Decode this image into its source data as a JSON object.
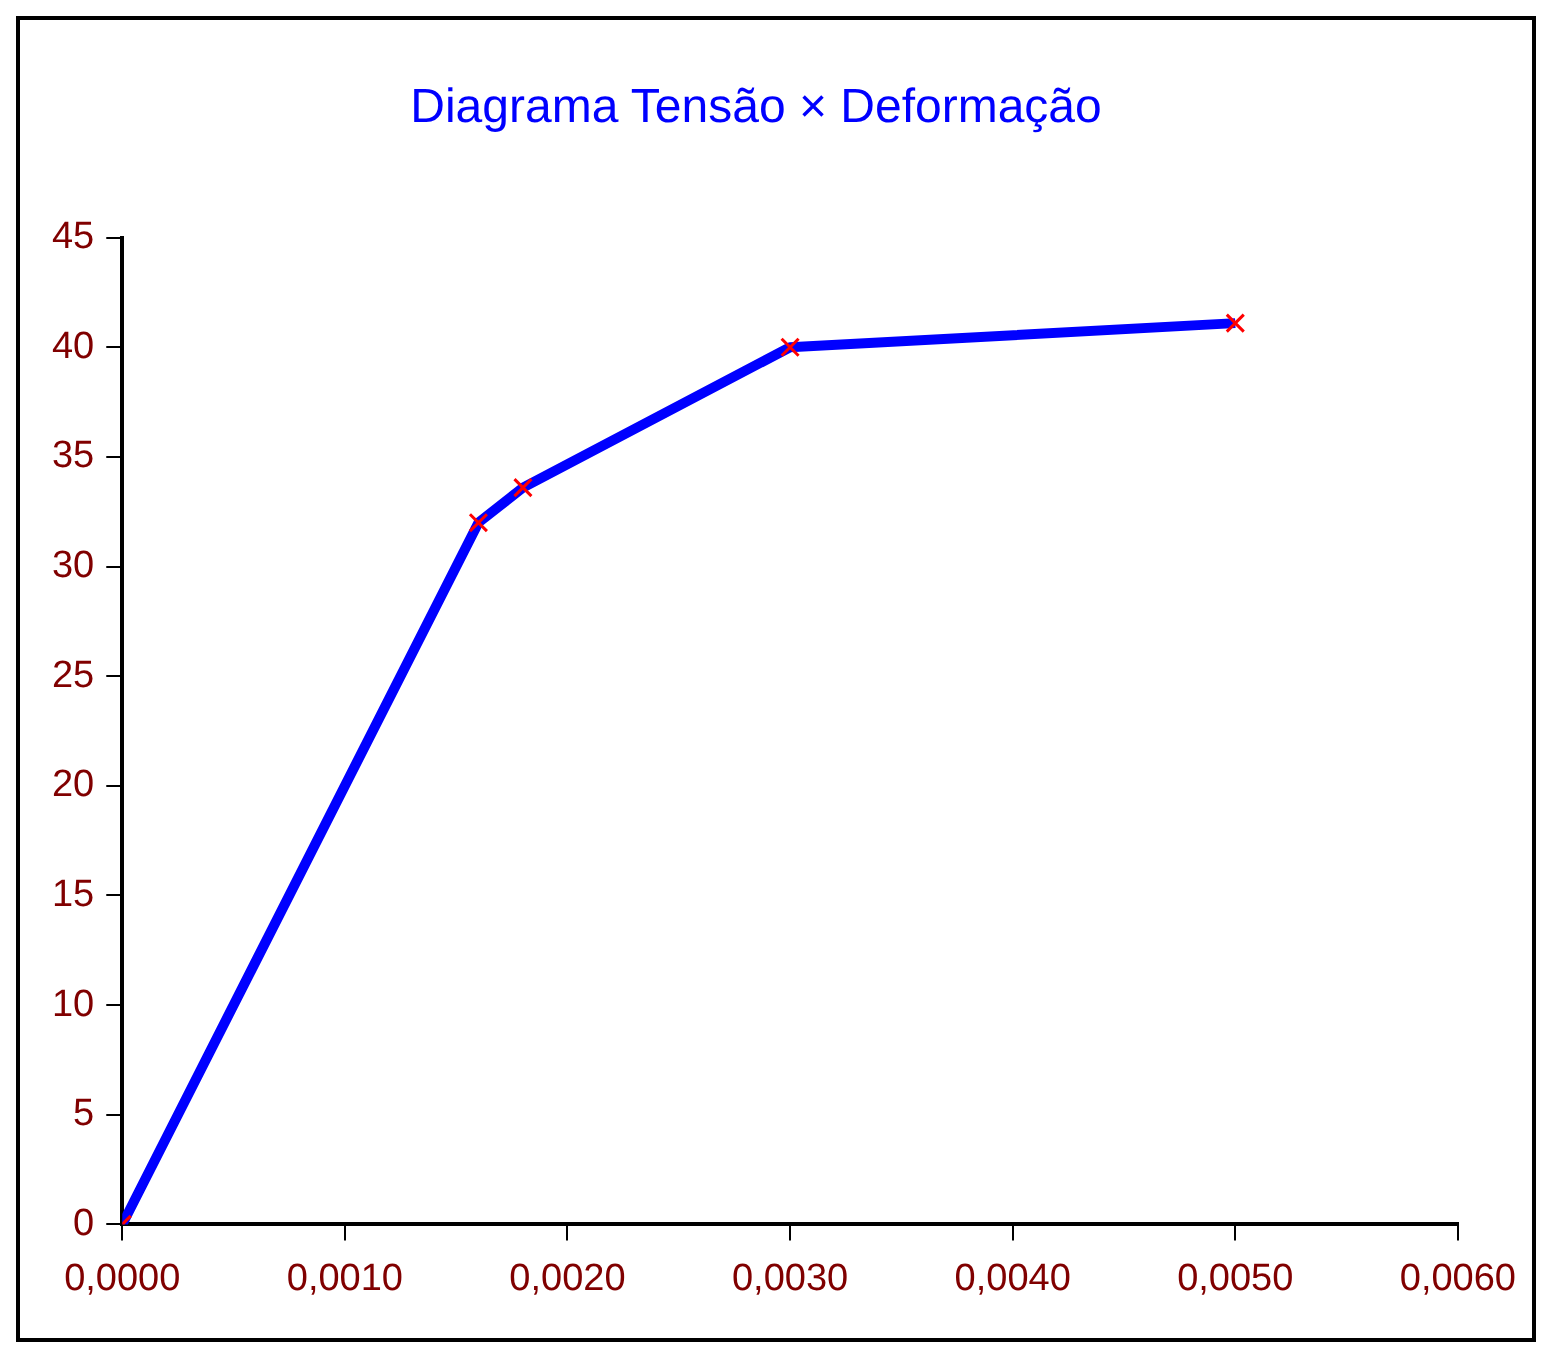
{
  "chart_data": {
    "type": "line",
    "title": "Diagrama Tensão × Deformação",
    "x": [
      0,
      0.0016,
      0.0018,
      0.003,
      0.005
    ],
    "series": [
      {
        "color": "#0000ff",
        "values": [
          0,
          32,
          33.6,
          40,
          41.1
        ]
      }
    ],
    "marker": "cross",
    "line_style": "solid",
    "grid": false,
    "legend": false,
    "xlim": [
      0,
      0.006
    ],
    "ylim": [
      0,
      45
    ],
    "xticks": [
      {
        "value": 0,
        "label": "0,0000"
      },
      {
        "value": 0.001,
        "label": "0,0010"
      },
      {
        "value": 0.002,
        "label": "0,0020"
      },
      {
        "value": 0.003,
        "label": "0,0030"
      },
      {
        "value": 0.004,
        "label": "0,0040"
      },
      {
        "value": 0.005,
        "label": "0,0050"
      },
      {
        "value": 0.006,
        "label": "0,0060"
      }
    ],
    "yticks": [
      0,
      5,
      10,
      15,
      20,
      25,
      30,
      35,
      40,
      45
    ]
  }
}
